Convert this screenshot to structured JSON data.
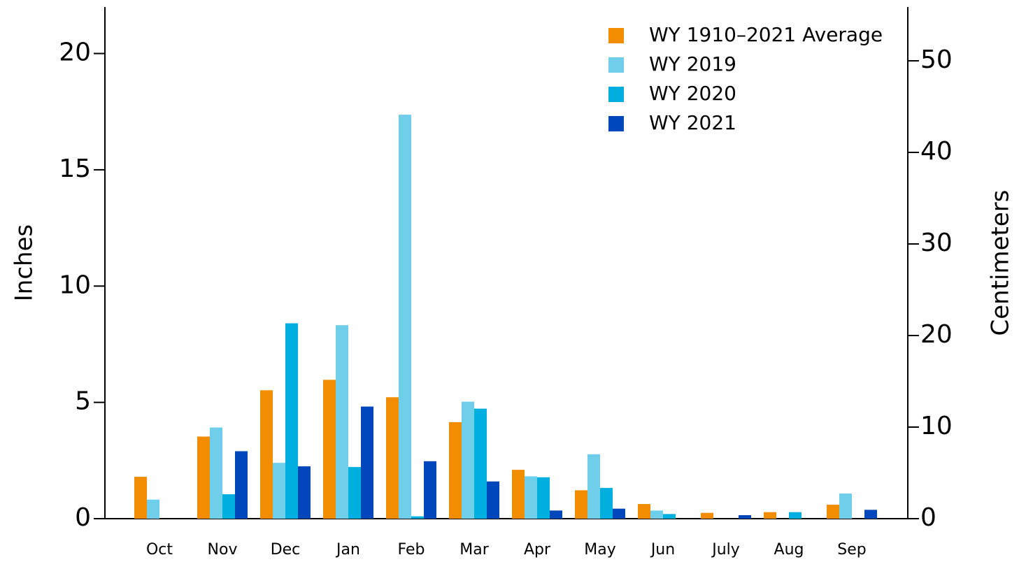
{
  "chart_data": {
    "type": "bar",
    "categories": [
      "Oct",
      "Nov",
      "Dec",
      "Jan",
      "Feb",
      "Mar",
      "Apr",
      "May",
      "Jun",
      "July",
      "Aug",
      "Sep"
    ],
    "series": [
      {
        "name": "WY 1910–2021 Average",
        "color": "#f28c00",
        "values": [
          1.8,
          3.53,
          5.52,
          5.97,
          5.22,
          4.15,
          2.1,
          1.22,
          0.63,
          0.25,
          0.28,
          0.6
        ]
      },
      {
        "name": "WY 2019",
        "color": "#6fcfeb",
        "values": [
          0.82,
          3.92,
          2.4,
          8.32,
          17.37,
          5.03,
          1.82,
          2.77,
          0.35,
          0,
          0,
          1.08
        ]
      },
      {
        "name": "WY 2020",
        "color": "#00afdf",
        "values": [
          0,
          1.05,
          8.4,
          2.22,
          0.1,
          4.73,
          1.78,
          1.32,
          0.2,
          0,
          0.28,
          0
        ]
      },
      {
        "name": "WY 2021",
        "color": "#0047bb",
        "values": [
          0,
          2.9,
          2.25,
          4.82,
          2.47,
          1.6,
          0.35,
          0.43,
          0,
          0.15,
          0,
          0.38
        ]
      }
    ],
    "ylabel": "Inches",
    "y2label": "Centimeters",
    "ylim": [
      0,
      22
    ],
    "yticks": [
      0,
      5,
      10,
      15,
      20
    ],
    "y2lim": [
      0,
      55.88
    ],
    "y2ticks": [
      0,
      10,
      20,
      30,
      40,
      50
    ],
    "legend": "upper right"
  }
}
